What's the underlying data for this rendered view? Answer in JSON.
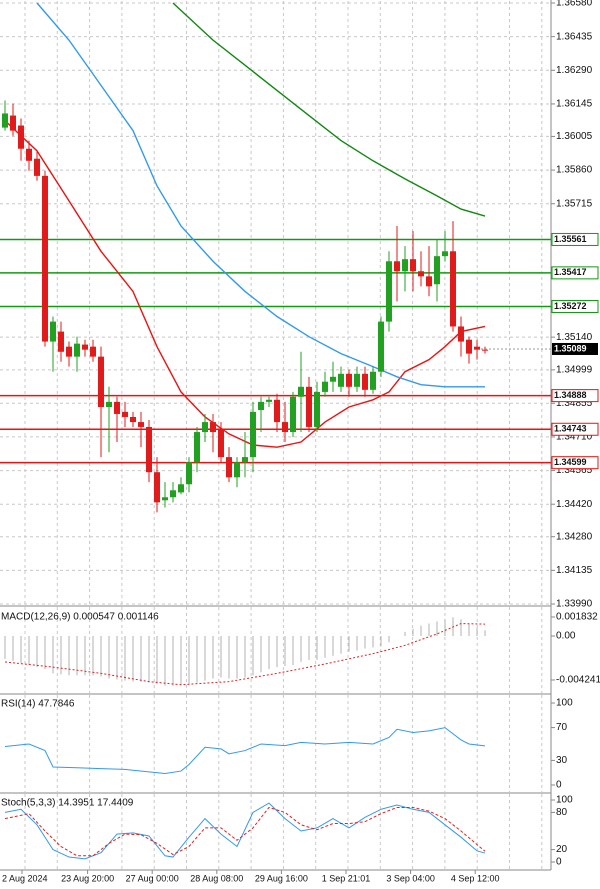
{
  "chart_data": [
    {
      "type": "candlestick",
      "open": [
        1.36043,
        1.36095,
        1.36052,
        1.35952,
        1.35909,
        1.35835,
        1.35121,
        1.35164,
        1.35099,
        1.35056,
        1.35108,
        1.35099,
        1.35056,
        1.34839,
        1.34861,
        1.34818,
        1.34796,
        1.34774,
        1.34753,
        1.34558,
        1.34437,
        1.3445,
        1.34471,
        1.34506,
        1.34601,
        1.34731,
        1.34774,
        1.3474,
        1.34623,
        1.34536,
        1.34601,
        1.34623,
        1.34826,
        1.34861,
        1.3487,
        1.34774,
        1.34731,
        1.34883,
        1.34926,
        1.34753,
        1.34904,
        1.34948,
        1.34926,
        1.34982,
        1.34926,
        1.34982,
        1.34913,
        1.34991,
        1.35207,
        1.35467,
        1.35424,
        1.35476,
        1.35424,
        1.35402,
        1.35368,
        1.35489,
        1.3551,
        1.35186,
        1.35129,
        1.35099,
        1.35086
      ],
      "high": [
        1.3616,
        1.36147,
        1.36082,
        1.35987,
        1.35943,
        1.35857,
        1.35229,
        1.35207,
        1.35121,
        1.35142,
        1.35129,
        1.35129,
        1.35099,
        1.34926,
        1.34883,
        1.34861,
        1.34818,
        1.34818,
        1.34783,
        1.34623,
        1.34515,
        1.34515,
        1.34536,
        1.34623,
        1.34753,
        1.34809,
        1.34809,
        1.34774,
        1.34666,
        1.34623,
        1.34731,
        1.34861,
        1.34883,
        1.34883,
        1.34896,
        1.34861,
        1.34904,
        1.35077,
        1.34969,
        1.34948,
        1.34991,
        1.35034,
        1.35013,
        1.35,
        1.35013,
        1.35013,
        1.35013,
        1.35229,
        1.3551,
        1.35619,
        1.35532,
        1.35597,
        1.3551,
        1.35532,
        1.35562,
        1.35597,
        1.3564,
        1.35229,
        1.35142,
        1.35129,
        1.35099
      ],
      "low": [
        1.3603,
        1.36008,
        1.359,
        1.35857,
        1.35814,
        1.35099,
        1.34991,
        1.35034,
        1.35013,
        1.34991,
        1.35056,
        1.35034,
        1.34623,
        1.34644,
        1.34688,
        1.34753,
        1.34753,
        1.34666,
        1.34515,
        1.34385,
        1.34406,
        1.34428,
        1.34463,
        1.34471,
        1.34558,
        1.34688,
        1.34644,
        1.34601,
        1.34515,
        1.34493,
        1.34536,
        1.34558,
        1.34731,
        1.34839,
        1.34731,
        1.34688,
        1.34709,
        1.34731,
        1.34731,
        1.34731,
        1.34883,
        1.34904,
        1.34904,
        1.34883,
        1.34904,
        1.34883,
        1.34896,
        1.34969,
        1.35164,
        1.35294,
        1.35337,
        1.35337,
        1.35359,
        1.35316,
        1.35294,
        1.35467,
        1.35164,
        1.35056,
        1.35026,
        1.35043,
        1.35069
      ],
      "close": [
        1.36104,
        1.3603,
        1.35952,
        1.359,
        1.35835,
        1.35121,
        1.35207,
        1.35077,
        1.35056,
        1.35112,
        1.35086,
        1.35056,
        1.34839,
        1.34861,
        1.34809,
        1.34796,
        1.34774,
        1.34753,
        1.34558,
        1.34428,
        1.3445,
        1.3448,
        1.34506,
        1.34601,
        1.34731,
        1.34774,
        1.34731,
        1.34623,
        1.34536,
        1.34601,
        1.34623,
        1.34818,
        1.34861,
        1.3487,
        1.34774,
        1.34731,
        1.34883,
        1.34926,
        1.34753,
        1.34904,
        1.34948,
        1.34969,
        1.34982,
        1.34926,
        1.34982,
        1.34913,
        1.34991,
        1.35207,
        1.35467,
        1.35424,
        1.35476,
        1.35424,
        1.35402,
        1.35359,
        1.35489,
        1.3551,
        1.35186,
        1.35121,
        1.35069,
        1.35086,
        1.35082
      ],
      "up_color": "#22a022",
      "down_color": "#e01b1b",
      "ylim": [
        1.3399,
        1.3658
      ],
      "yticks": [
        {
          "value": 1.3658,
          "label": "1.36580"
        },
        1.36435,
        {
          "value": 1.3629,
          "label": "1.36290"
        },
        1.36145,
        1.36005,
        {
          "value": 1.3586,
          "label": "1.35860"
        },
        1.35715,
        {
          "value": 1.3514,
          "label": "1.35140"
        },
        1.34999,
        1.34855,
        {
          "value": 1.3471,
          "label": "1.34710"
        },
        1.34565,
        {
          "value": 1.3442,
          "label": "1.34420"
        },
        {
          "value": 1.3428,
          "label": "1.34280"
        },
        1.34135,
        {
          "value": 1.3399,
          "label": "1.33990"
        }
      ],
      "grid": true,
      "moving_averages": [
        {
          "color": "#ee1111",
          "x": [
            0,
            4,
            8,
            12,
            16,
            19,
            22,
            25,
            28,
            31,
            34,
            37,
            40,
            43,
            46,
            48,
            50,
            53,
            55,
            57,
            60
          ],
          "values": [
            1.36073,
            1.35943,
            1.35727,
            1.3551,
            1.35337,
            1.35099,
            1.34904,
            1.34796,
            1.34723,
            1.34675,
            1.34666,
            1.34688,
            1.34774,
            1.34839,
            1.3487,
            1.34904,
            1.34991,
            1.35043,
            1.35099,
            1.35164,
            1.35186
          ]
        },
        {
          "color": "#3399ee",
          "x": [
            4,
            8,
            12,
            16,
            19,
            22,
            26,
            30,
            34,
            38,
            42,
            46,
            49,
            52,
            55,
            60
          ],
          "values": [
            1.3658,
            1.3642,
            1.36225,
            1.3603,
            1.35792,
            1.35619,
            1.35467,
            1.35337,
            1.35229,
            1.35142,
            1.35069,
            1.35013,
            1.34969,
            1.34935,
            1.34926,
            1.34926
          ]
        },
        {
          "color": "#118811",
          "x": [
            21,
            26,
            30,
            34,
            38,
            42,
            46,
            50,
            54,
            57,
            60
          ],
          "values": [
            1.3658,
            1.3642,
            1.36312,
            1.36203,
            1.36095,
            1.35987,
            1.359,
            1.35822,
            1.35749,
            1.35692,
            1.35662
          ]
        }
      ],
      "levels": [
        {
          "value": 1.35561,
          "color": "#119911"
        },
        {
          "value": 1.35417,
          "color": "#119911"
        },
        {
          "value": 1.35272,
          "color": "#119911"
        },
        {
          "value": 1.34888,
          "color": "#ee1111"
        },
        {
          "value": 1.34743,
          "color": "#ee1111"
        },
        {
          "value": 1.34599,
          "color": "#ee1111"
        }
      ],
      "last_price": 1.35089,
      "x_labels": [
        "2 Aug 2024",
        "23 Aug 20:00",
        "27 Aug 00:00",
        "28 Aug 08:00",
        "29 Aug 16:00",
        "1 Sep 21:01",
        "3 Sep 04:00",
        "4 Sep 12:00"
      ]
    },
    {
      "type": "macd",
      "title": "MACD(12,26,9) 0.000547 0.001146",
      "values": [
        -0.0022,
        -0.0024,
        -0.0026,
        -0.0028,
        -0.003,
        -0.0032,
        -0.0036,
        -0.0037,
        -0.0038,
        -0.0038,
        -0.0038,
        -0.0038,
        -0.0039,
        -0.0041,
        -0.0042,
        -0.0043,
        -0.0044,
        -0.0044,
        -0.0045,
        -0.0046,
        -0.0048,
        -0.0048,
        -0.0047,
        -0.0046,
        -0.0045,
        -0.0043,
        -0.0041,
        -0.004,
        -0.0041,
        -0.0041,
        -0.004,
        -0.0038,
        -0.0035,
        -0.0032,
        -0.003,
        -0.0029,
        -0.0028,
        -0.0025,
        -0.0023,
        -0.0023,
        -0.0021,
        -0.0019,
        -0.0017,
        -0.0015,
        -0.0014,
        -0.0012,
        -0.0011,
        -0.001,
        -0.0006,
        0,
        0.0004,
        0.0007,
        0.001,
        0.0012,
        0.0014,
        0.0016,
        0.0018,
        0.0016,
        0.0012,
        0.0008,
        0.000547
      ],
      "color": "#b0b0b0",
      "signal": {
        "color": "#dd2222",
        "x": [
          0,
          6,
          12,
          18,
          22,
          28,
          34,
          40,
          46,
          50,
          54,
          57,
          60
        ],
        "values": [
          -0.0025,
          -0.003,
          -0.0036,
          -0.0044,
          -0.0047,
          -0.0044,
          -0.0036,
          -0.0027,
          -0.0017,
          -0.0009,
          0.0002,
          0.0012,
          0.001146
        ]
      },
      "ylim": [
        -0.0054,
        0.0027
      ],
      "yticks": [
        0.001832,
        {
          "value": 0,
          "label": "0.00"
        },
        -0.004241
      ]
    },
    {
      "type": "line",
      "title": "RSI(14) 47.7846",
      "series": [
        {
          "color": "#3399ee",
          "x": [
            0,
            3,
            5,
            6,
            9,
            12,
            15,
            18,
            20,
            22,
            23,
            25,
            27,
            28,
            30,
            32,
            35,
            37,
            40,
            43,
            46,
            48,
            49,
            51,
            53,
            55,
            57,
            58,
            60
          ],
          "values": [
            47,
            50,
            42,
            22,
            21,
            20,
            19,
            16,
            14,
            17,
            25,
            46,
            44,
            38,
            42,
            50,
            48,
            52,
            50,
            52,
            50,
            58,
            68,
            64,
            66,
            70,
            55,
            50,
            47.7846
          ]
        }
      ],
      "ylim": [
        0,
        100
      ],
      "yticks": [
        0,
        30,
        70,
        100
      ]
    },
    {
      "type": "line",
      "title": "Stoch(5,3,3) 14.3951 17.4409",
      "series": [
        {
          "color": "#3399ee",
          "x": [
            0,
            2,
            4,
            6,
            8,
            10,
            12,
            14,
            16,
            18,
            20,
            21,
            23,
            25,
            27,
            29,
            31,
            33,
            35,
            37,
            39,
            41,
            43,
            45,
            47,
            49,
            51,
            53,
            55,
            57,
            59,
            60
          ],
          "values": [
            80,
            85,
            60,
            20,
            8,
            5,
            15,
            45,
            47,
            42,
            10,
            8,
            40,
            70,
            45,
            25,
            80,
            95,
            70,
            50,
            55,
            70,
            55,
            72,
            85,
            92,
            85,
            80,
            60,
            40,
            18,
            14.3951
          ]
        },
        {
          "color": "#dd2222",
          "dashed": true,
          "x": [
            0,
            3,
            5,
            7,
            9,
            11,
            13,
            15,
            17,
            19,
            21,
            23,
            25,
            27,
            29,
            31,
            33,
            35,
            37,
            39,
            41,
            43,
            45,
            47,
            49,
            51,
            53,
            55,
            57,
            59,
            60
          ],
          "values": [
            70,
            78,
            50,
            25,
            10,
            10,
            30,
            45,
            44,
            30,
            12,
            25,
            55,
            55,
            35,
            55,
            88,
            80,
            60,
            52,
            62,
            62,
            65,
            78,
            88,
            88,
            82,
            70,
            50,
            28,
            17.4409
          ]
        }
      ],
      "ylim": [
        0,
        100
      ],
      "yticks": [
        0,
        20,
        80,
        100
      ]
    }
  ]
}
